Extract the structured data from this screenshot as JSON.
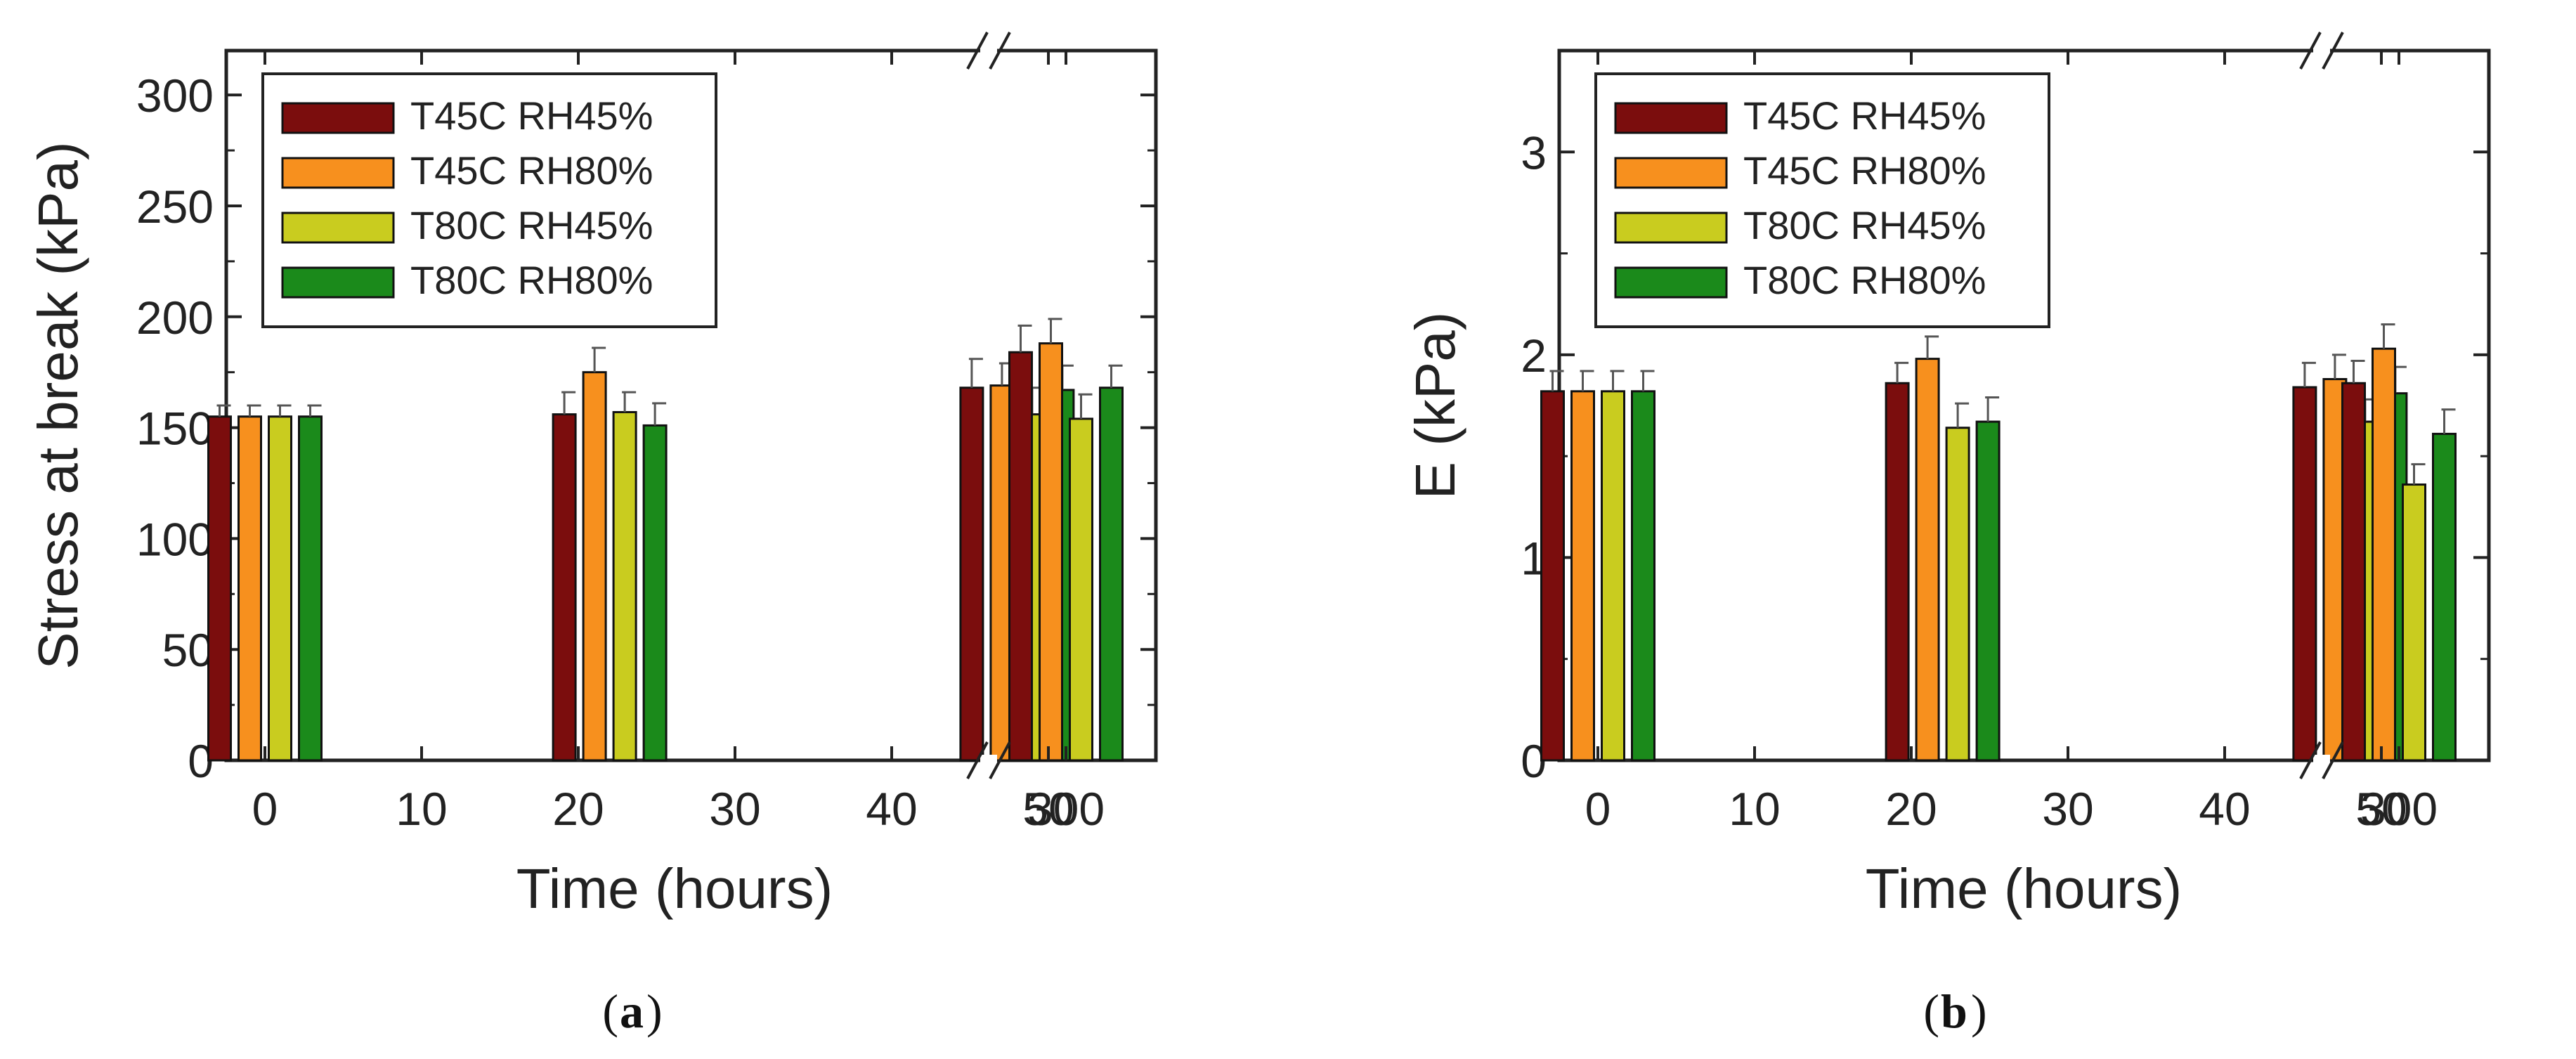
{
  "chart_data": [
    {
      "type": "bar",
      "panel_label": "(a)",
      "panel_letter": "a",
      "ylabel": "Stress at break (kPa)",
      "xlabel": "Time (hours)",
      "ylim": [
        0,
        320
      ],
      "yticks": [
        0,
        50,
        100,
        150,
        200,
        250,
        300
      ],
      "xticks": [
        "0",
        "10",
        "20",
        "30",
        "40",
        "50",
        "300"
      ],
      "x_axis_break": true,
      "legend_position": "top-left",
      "series": [
        {
          "name": "T45C RH45%",
          "color": "#7b0d0d",
          "values": [
            155,
            156,
            168,
            184
          ],
          "errors": [
            5,
            10,
            13,
            12
          ]
        },
        {
          "name": "T45C RH80%",
          "color": "#f7901e",
          "values": [
            155,
            175,
            169,
            188
          ],
          "errors": [
            5,
            11,
            10,
            11
          ]
        },
        {
          "name": "T80C RH45%",
          "color": "#c9cc1f",
          "values": [
            155,
            157,
            156,
            154
          ],
          "errors": [
            5,
            9,
            12,
            11
          ]
        },
        {
          "name": "T80C RH80%",
          "color": "#1b8a1b",
          "values": [
            155,
            151,
            167,
            168
          ],
          "errors": [
            5,
            10,
            11,
            10
          ]
        }
      ],
      "groups": [
        {
          "x": 0,
          "label": "0"
        },
        {
          "x": 22,
          "label": "22"
        },
        {
          "x": 48,
          "label": "48"
        },
        {
          "x": 300,
          "label": "300"
        }
      ]
    },
    {
      "type": "bar",
      "panel_label": "(b)",
      "panel_letter": "b",
      "ylabel": "E (kPa)",
      "xlabel": "Time (hours)",
      "ylim": [
        0,
        3.5
      ],
      "yticks": [
        0,
        1,
        2,
        3
      ],
      "xticks": [
        "0",
        "10",
        "20",
        "30",
        "40",
        "50",
        "300"
      ],
      "x_axis_break": true,
      "legend_position": "top-left",
      "series": [
        {
          "name": "T45C RH45%",
          "color": "#7b0d0d",
          "values": [
            1.82,
            1.86,
            1.84,
            1.86
          ],
          "errors": [
            0.1,
            0.1,
            0.12,
            0.11
          ]
        },
        {
          "name": "T45C RH80%",
          "color": "#f7901e",
          "values": [
            1.82,
            1.98,
            1.88,
            2.03
          ],
          "errors": [
            0.1,
            0.11,
            0.12,
            0.12
          ]
        },
        {
          "name": "T80C RH45%",
          "color": "#c9cc1f",
          "values": [
            1.82,
            1.64,
            1.67,
            1.36
          ],
          "errors": [
            0.1,
            0.12,
            0.11,
            0.1
          ]
        },
        {
          "name": "T80C RH80%",
          "color": "#1b8a1b",
          "values": [
            1.82,
            1.67,
            1.81,
            1.61
          ],
          "errors": [
            0.1,
            0.12,
            0.13,
            0.12
          ]
        }
      ],
      "groups": [
        {
          "x": 0,
          "label": "0"
        },
        {
          "x": 22,
          "label": "22"
        },
        {
          "x": 48,
          "label": "48"
        },
        {
          "x": 300,
          "label": "300"
        }
      ]
    }
  ]
}
